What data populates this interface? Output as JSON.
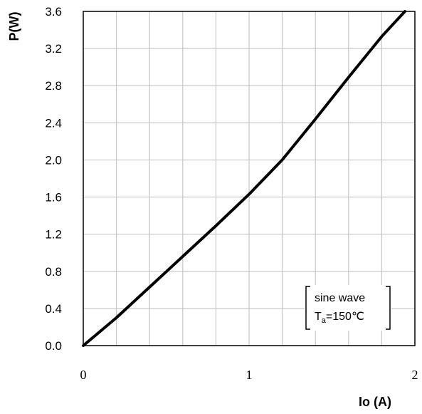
{
  "chart_data": {
    "type": "line",
    "xlabel": "Io (A)",
    "ylabel": "P(W)",
    "xlim": [
      0,
      2
    ],
    "ylim": [
      0,
      3.6
    ],
    "x_ticks": [
      "0",
      "1",
      "2"
    ],
    "y_ticks": [
      "0.0",
      "0.4",
      "0.8",
      "1.2",
      "1.6",
      "2.0",
      "2.4",
      "2.8",
      "3.2",
      "3.6"
    ],
    "x_grid_step": 0.2,
    "y_grid_step": 0.4,
    "grid": true,
    "legend": {
      "position": "bottom-right",
      "line1": "sine wave",
      "line2_prefix": "T",
      "line2_sub": "a",
      "line2_suffix": "=150℃"
    },
    "series": [
      {
        "color": "#000000",
        "x": [
          0,
          0.2,
          0.4,
          0.6,
          0.8,
          1.0,
          1.2,
          1.4,
          1.6,
          1.8,
          1.94
        ],
        "y": [
          0,
          0.3,
          0.63,
          0.96,
          1.29,
          1.63,
          2.0,
          2.44,
          2.89,
          3.33,
          3.6
        ]
      }
    ]
  }
}
